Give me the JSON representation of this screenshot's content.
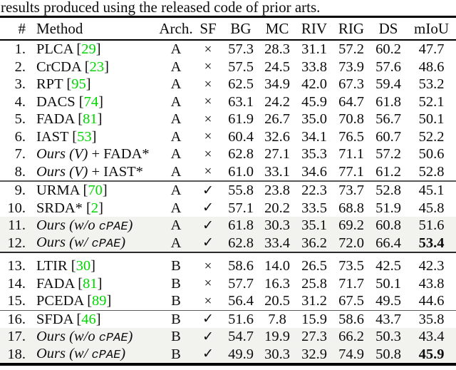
{
  "caption": "results produced using the released code of prior arts.",
  "colors": {
    "citation_green": "#00d600",
    "highlight_bg": "#f2f2ef",
    "rule_black": "#000000"
  },
  "table": {
    "columns": [
      "#",
      "Method",
      "Arch.",
      "SF",
      "BG",
      "MC",
      "RIV",
      "RIG",
      "DS",
      "mIoU"
    ],
    "sf_glyphs": {
      "no": "×",
      "yes": "✓"
    },
    "sections": [
      {
        "rows": [
          {
            "num": "1.",
            "method": [
              {
                "t": "PLCA [",
                "s": "r"
              },
              {
                "t": "29",
                "s": "g"
              },
              {
                "t": "]",
                "s": "r"
              }
            ],
            "arch": "A",
            "sf": "no",
            "values": [
              "57.3",
              "28.3",
              "31.1",
              "57.2",
              "60.2"
            ],
            "miou": "47.7",
            "bold_miou": false,
            "highlight": false
          },
          {
            "num": "2.",
            "method": [
              {
                "t": "CrCDA [",
                "s": "r"
              },
              {
                "t": "23",
                "s": "g"
              },
              {
                "t": "]",
                "s": "r"
              }
            ],
            "arch": "A",
            "sf": "no",
            "values": [
              "57.5",
              "24.5",
              "33.8",
              "73.9",
              "57.6"
            ],
            "miou": "48.6",
            "bold_miou": false,
            "highlight": false
          },
          {
            "num": "3.",
            "method": [
              {
                "t": "RPT [",
                "s": "r"
              },
              {
                "t": "95",
                "s": "g"
              },
              {
                "t": "]",
                "s": "r"
              }
            ],
            "arch": "A",
            "sf": "no",
            "values": [
              "62.5",
              "34.9",
              "42.0",
              "67.3",
              "59.4"
            ],
            "miou": "53.2",
            "bold_miou": false,
            "highlight": false
          },
          {
            "num": "4.",
            "method": [
              {
                "t": "DACS [",
                "s": "r"
              },
              {
                "t": "74",
                "s": "g"
              },
              {
                "t": "]",
                "s": "r"
              }
            ],
            "arch": "A",
            "sf": "no",
            "values": [
              "63.1",
              "24.2",
              "45.9",
              "64.7",
              "61.8"
            ],
            "miou": "52.1",
            "bold_miou": false,
            "highlight": false
          },
          {
            "num": "5.",
            "method": [
              {
                "t": "FADA [",
                "s": "r"
              },
              {
                "t": "81",
                "s": "g"
              },
              {
                "t": "]",
                "s": "r"
              }
            ],
            "arch": "A",
            "sf": "no",
            "values": [
              "61.9",
              "26.7",
              "35.0",
              "70.8",
              "56.7"
            ],
            "miou": "50.1",
            "bold_miou": false,
            "highlight": false
          },
          {
            "num": "6.",
            "method": [
              {
                "t": "IAST [",
                "s": "r"
              },
              {
                "t": "53",
                "s": "g"
              },
              {
                "t": "]",
                "s": "r"
              }
            ],
            "arch": "A",
            "sf": "no",
            "values": [
              "60.4",
              "32.6",
              "34.1",
              "76.5",
              "60.7"
            ],
            "miou": "52.2",
            "bold_miou": false,
            "highlight": false
          },
          {
            "num": "7.",
            "method": [
              {
                "t": "Ours (V)",
                "s": "i"
              },
              {
                "t": " + FADA*",
                "s": "r"
              }
            ],
            "arch": "A",
            "sf": "no",
            "values": [
              "62.8",
              "27.1",
              "35.3",
              "71.1",
              "57.2"
            ],
            "miou": "50.6",
            "bold_miou": false,
            "highlight": false
          },
          {
            "num": "8.",
            "method": [
              {
                "t": "Ours (V)",
                "s": "i"
              },
              {
                "t": " + IAST*",
                "s": "r"
              }
            ],
            "arch": "A",
            "sf": "no",
            "values": [
              "61.0",
              "33.1",
              "34.6",
              "77.1",
              "61.2"
            ],
            "miou": "52.8",
            "bold_miou": false,
            "highlight": false
          }
        ]
      },
      {
        "rows": [
          {
            "num": "9.",
            "method": [
              {
                "t": "URMA [",
                "s": "r"
              },
              {
                "t": "70",
                "s": "g"
              },
              {
                "t": "]",
                "s": "r"
              }
            ],
            "arch": "A",
            "sf": "yes",
            "values": [
              "55.8",
              "23.8",
              "22.3",
              "73.7",
              "52.8"
            ],
            "miou": "45.1",
            "bold_miou": false,
            "highlight": false
          },
          {
            "num": "10.",
            "method": [
              {
                "t": "SRDA* [",
                "s": "r"
              },
              {
                "t": "2",
                "s": "g"
              },
              {
                "t": "]",
                "s": "r"
              }
            ],
            "arch": "A",
            "sf": "yes",
            "values": [
              "57.1",
              "20.2",
              "33.5",
              "68.8",
              "51.9"
            ],
            "miou": "45.8",
            "bold_miou": false,
            "highlight": false
          },
          {
            "num": "11.",
            "method": [
              {
                "t": "Ours (w/o ",
                "s": "i"
              },
              {
                "t": "cPAE",
                "s": "m"
              },
              {
                "t": ")",
                "s": "i"
              }
            ],
            "arch": "A",
            "sf": "yes",
            "values": [
              "61.8",
              "30.3",
              "35.1",
              "69.2",
              "60.8"
            ],
            "miou": "51.6",
            "bold_miou": false,
            "highlight": true
          },
          {
            "num": "12.",
            "method": [
              {
                "t": "Ours (w/ ",
                "s": "i"
              },
              {
                "t": "cPAE",
                "s": "m"
              },
              {
                "t": ")",
                "s": "i"
              }
            ],
            "arch": "A",
            "sf": "yes",
            "values": [
              "62.8",
              "33.4",
              "36.2",
              "72.0",
              "66.4"
            ],
            "miou": "53.4",
            "bold_miou": true,
            "highlight": true
          }
        ]
      },
      {
        "rows": [
          {
            "num": "13.",
            "method": [
              {
                "t": "LTIR [",
                "s": "r"
              },
              {
                "t": "30",
                "s": "g"
              },
              {
                "t": "]",
                "s": "r"
              }
            ],
            "arch": "B",
            "sf": "no",
            "values": [
              "58.6",
              "14.0",
              "26.5",
              "73.5",
              "42.5"
            ],
            "miou": "42.3",
            "bold_miou": false,
            "highlight": false
          },
          {
            "num": "14.",
            "method": [
              {
                "t": "FADA [",
                "s": "r"
              },
              {
                "t": "81",
                "s": "g"
              },
              {
                "t": "]",
                "s": "r"
              }
            ],
            "arch": "B",
            "sf": "no",
            "values": [
              "57.7",
              "16.3",
              "25.8",
              "71.7",
              "50.1"
            ],
            "miou": "43.8",
            "bold_miou": false,
            "highlight": false
          },
          {
            "num": "15.",
            "method": [
              {
                "t": "PCEDA [",
                "s": "r"
              },
              {
                "t": "89",
                "s": "g"
              },
              {
                "t": "]",
                "s": "r"
              }
            ],
            "arch": "B",
            "sf": "no",
            "values": [
              "56.4",
              "20.5",
              "31.2",
              "67.5",
              "49.5"
            ],
            "miou": "44.6",
            "bold_miou": false,
            "highlight": false
          }
        ]
      },
      {
        "rows": [
          {
            "num": "16.",
            "method": [
              {
                "t": "SFDA [",
                "s": "r"
              },
              {
                "t": "46",
                "s": "g"
              },
              {
                "t": "]",
                "s": "r"
              }
            ],
            "arch": "B",
            "sf": "yes",
            "values": [
              "51.6",
              "7.8",
              "15.9",
              "58.6",
              "43.7"
            ],
            "miou": "35.8",
            "bold_miou": false,
            "highlight": false
          },
          {
            "num": "17.",
            "method": [
              {
                "t": "Ours (w/o ",
                "s": "i"
              },
              {
                "t": "cPAE",
                "s": "m"
              },
              {
                "t": ")",
                "s": "i"
              }
            ],
            "arch": "B",
            "sf": "yes",
            "values": [
              "54.7",
              "19.9",
              "27.3",
              "66.2",
              "50.3"
            ],
            "miou": "43.4",
            "bold_miou": false,
            "highlight": true
          },
          {
            "num": "18.",
            "method": [
              {
                "t": "Ours (w/ ",
                "s": "i"
              },
              {
                "t": "cPAE",
                "s": "m"
              },
              {
                "t": ")",
                "s": "i"
              }
            ],
            "arch": "B",
            "sf": "yes",
            "values": [
              "49.9",
              "30.3",
              "32.9",
              "74.9",
              "50.8"
            ],
            "miou": "45.9",
            "bold_miou": true,
            "highlight": true
          }
        ]
      }
    ]
  }
}
